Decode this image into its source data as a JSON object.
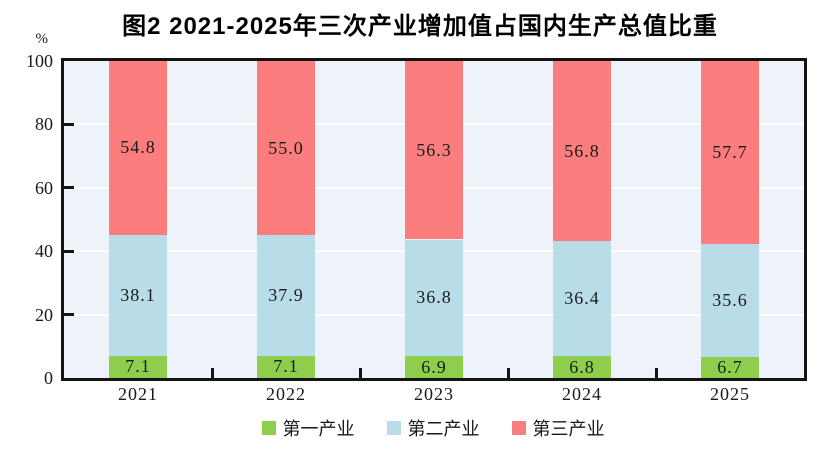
{
  "page": {
    "background": "#ffffff"
  },
  "chart_data": {
    "type": "bar",
    "stacked": true,
    "title": "图2  2021-2025年三次产业增加值占国内生产总值比重",
    "unit_label": "%",
    "categories": [
      "2021",
      "2022",
      "2023",
      "2024",
      "2025"
    ],
    "series": [
      {
        "name": "第一产业",
        "color": "#8dcf4d",
        "values": [
          7.1,
          7.1,
          6.9,
          6.8,
          6.7
        ],
        "labels": [
          "7.1",
          "7.1",
          "6.9",
          "6.8",
          "6.7"
        ]
      },
      {
        "name": "第二产业",
        "color": "#b9dde8",
        "values": [
          38.1,
          37.9,
          36.8,
          36.4,
          35.6
        ],
        "labels": [
          "38.1",
          "37.9",
          "36.8",
          "36.4",
          "35.6"
        ]
      },
      {
        "name": "第三产业",
        "color": "#fc7d7d",
        "values": [
          54.8,
          55.0,
          56.3,
          56.8,
          57.7
        ],
        "labels": [
          "54.8",
          "55.0",
          "56.3",
          "56.8",
          "57.7"
        ]
      }
    ],
    "ylim": [
      0,
      100
    ],
    "yticks": [
      0,
      20,
      40,
      60,
      80,
      100
    ],
    "grid": true,
    "plot_background": "#edf3f8",
    "gridline_color": "#ffffff",
    "axis_color": "#141414",
    "label_color": "#1a1a1a",
    "legend_position": "bottom"
  }
}
